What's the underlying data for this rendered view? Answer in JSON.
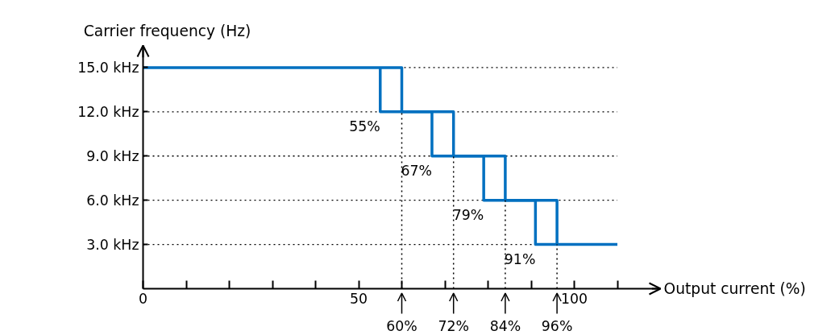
{
  "chart_data": {
    "type": "line",
    "xlabel": "Output current (%)",
    "ylabel": "Carrier frequency (Hz)",
    "series": [
      {
        "color": "#0070c0",
        "x": [
          0,
          60,
          60,
          72,
          72,
          84,
          84,
          96,
          96,
          110
        ],
        "values": [
          15,
          15,
          12,
          12,
          9,
          9,
          6,
          6,
          3,
          3
        ]
      },
      {
        "color": "#0070c0",
        "x": [
          55,
          55,
          67,
          67,
          79,
          79,
          91,
          91,
          96
        ],
        "values": [
          15,
          12,
          12,
          9,
          9,
          6,
          6,
          3,
          3
        ]
      }
    ],
    "xlim": [
      0,
      120
    ],
    "ylim": [
      0,
      16.5
    ],
    "xticks": [
      0,
      {
        "value": 10,
        "label": null
      },
      {
        "value": 20,
        "label": null
      },
      {
        "value": 30,
        "label": null
      },
      {
        "value": 40,
        "label": null
      },
      50,
      {
        "value": 60,
        "label": null
      },
      {
        "value": 70,
        "label": null
      },
      {
        "value": 80,
        "label": null
      },
      {
        "value": 90,
        "label": null
      },
      100,
      {
        "value": 110,
        "label": null
      }
    ],
    "yticks": [
      {
        "value": 3,
        "label": "3.0 kHz"
      },
      {
        "value": 6,
        "label": "6.0 kHz"
      },
      {
        "value": 9,
        "label": "9.0 kHz"
      },
      {
        "value": 12,
        "label": "12.0 kHz"
      },
      {
        "value": 15,
        "label": "15.0 kHz"
      }
    ],
    "grid": "y",
    "line_style": "solid",
    "marker": "none",
    "ref_lines": [
      {
        "axis": "x",
        "value": 60,
        "label": "60%",
        "line_style": "dotted"
      },
      {
        "axis": "x",
        "value": 72,
        "label": "72%",
        "line_style": "dotted"
      },
      {
        "axis": "x",
        "value": 84,
        "label": "84%",
        "line_style": "dotted"
      },
      {
        "axis": "x",
        "value": 96,
        "label": "96%",
        "line_style": "dotted"
      }
    ],
    "annotations": [
      {
        "text": "55%",
        "x": 55,
        "y": 12
      },
      {
        "text": "67%",
        "x": 67,
        "y": 9
      },
      {
        "text": "79%",
        "x": 79,
        "y": 6
      },
      {
        "text": "91%",
        "x": 91,
        "y": 3
      }
    ]
  }
}
